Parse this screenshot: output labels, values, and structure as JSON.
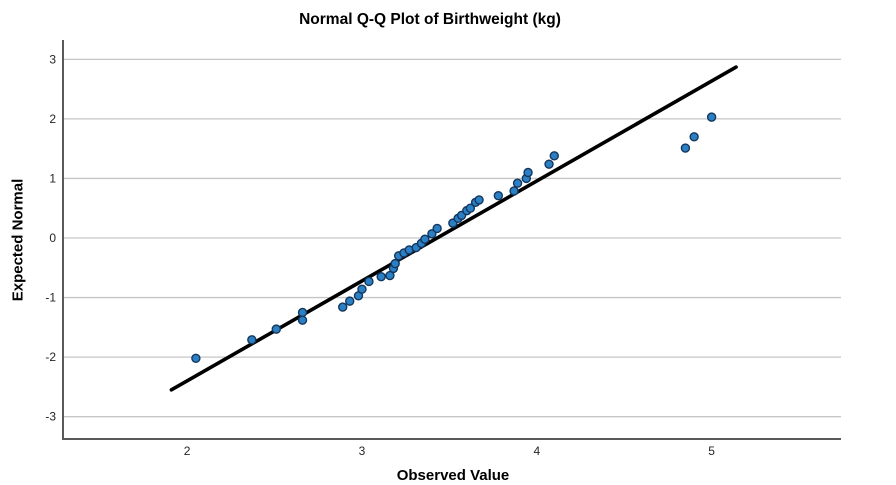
{
  "title": "Normal Q-Q Plot of Birthweight (kg)",
  "chart_data": {
    "type": "scatter",
    "title": "Normal Q-Q Plot of Birthweight (kg)",
    "xlabel": "Observed Value",
    "ylabel": "Expected Normal",
    "xlim": [
      1.29,
      5.74
    ],
    "ylim": [
      -3.375,
      3.325
    ],
    "x_ticks": [
      2,
      3,
      4,
      5
    ],
    "y_ticks": [
      3,
      2,
      1,
      0,
      -1,
      -2,
      -3
    ],
    "grid": "horizontal-only",
    "legend": "none",
    "points": [
      [
        2.05,
        -2.02
      ],
      [
        2.37,
        -1.71
      ],
      [
        2.51,
        -1.53
      ],
      [
        2.66,
        -1.38
      ],
      [
        2.66,
        -1.25
      ],
      [
        2.89,
        -1.16
      ],
      [
        2.93,
        -1.06
      ],
      [
        2.98,
        -0.97
      ],
      [
        3.0,
        -0.86
      ],
      [
        3.04,
        -0.73
      ],
      [
        3.11,
        -0.65
      ],
      [
        3.16,
        -0.63
      ],
      [
        3.18,
        -0.51
      ],
      [
        3.19,
        -0.43
      ],
      [
        3.21,
        -0.3
      ],
      [
        3.24,
        -0.25
      ],
      [
        3.27,
        -0.2
      ],
      [
        3.31,
        -0.16
      ],
      [
        3.34,
        -0.09
      ],
      [
        3.36,
        -0.02
      ],
      [
        3.4,
        0.07
      ],
      [
        3.43,
        0.16
      ],
      [
        3.52,
        0.25
      ],
      [
        3.55,
        0.33
      ],
      [
        3.57,
        0.38
      ],
      [
        3.6,
        0.46
      ],
      [
        3.62,
        0.5
      ],
      [
        3.65,
        0.6
      ],
      [
        3.67,
        0.64
      ],
      [
        3.78,
        0.71
      ],
      [
        3.87,
        0.79
      ],
      [
        3.89,
        0.92
      ],
      [
        3.94,
        1.0
      ],
      [
        3.95,
        1.1
      ],
      [
        4.07,
        1.24
      ],
      [
        4.1,
        1.38
      ],
      [
        4.85,
        1.51
      ],
      [
        4.9,
        1.7
      ],
      [
        5.0,
        2.03
      ]
    ],
    "fit_line": {
      "x1": 1.91,
      "y1": -2.55,
      "x2": 5.14,
      "y2": 2.87
    },
    "colors": {
      "point_fill": "#2b80c5",
      "point_stroke": "#14365c",
      "fit_line": "#000000",
      "gridline": "#c6c6c6",
      "axis": "#5a5a5a",
      "tick_label": "#262626",
      "background": "#ffffff"
    }
  }
}
